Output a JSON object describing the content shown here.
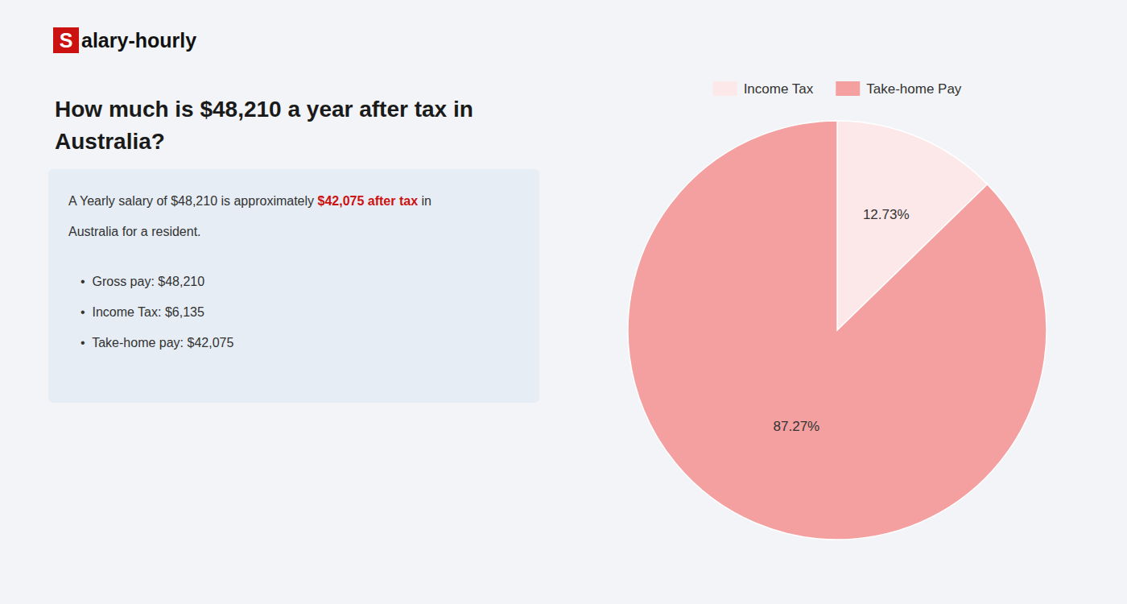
{
  "chart_data": {
    "type": "pie",
    "title": [
      "How much is $48,210 a year after tax in",
      "Australia?"
    ],
    "annotations": [
      {
        "text": "S",
        "color": "#cc1111"
      },
      {
        "text": "alary-hourly"
      },
      {
        "text": "A Yearly salary of $48,210 is approximately "
      },
      {
        "text": "$42,075 after tax",
        "color": "#cc1111"
      },
      {
        "text": " in"
      },
      {
        "text": "Australia for a resident."
      },
      {
        "text": "•  Gross pay: $48,210"
      },
      {
        "text": "•  Income Tax: $6,135"
      },
      {
        "text": "•  Take-home pay: $42,075"
      }
    ],
    "categories": [
      "Income Tax",
      "Take-home Pay"
    ],
    "values": [
      12.73,
      87.27
    ],
    "value_labels": [
      "12.73%",
      "87.27%"
    ],
    "colors": [
      "#fce8e8",
      "#f4a0a0"
    ],
    "data_labels": true,
    "legend": "top"
  }
}
